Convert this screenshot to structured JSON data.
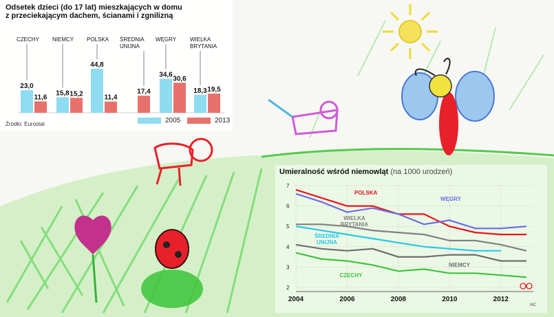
{
  "chart_data": [
    {
      "type": "bar",
      "title": "Odsetek dzieci (do 17 lat) mieszkających w domu",
      "subtitle": "z przeciekającym dachem, ścianami i zgnilizną",
      "source": "Źródło: Eurostat",
      "categories": [
        "CZECHY",
        "NIEMCY",
        "POLSKA",
        "ŚREDNIA UNIJNA",
        "WĘGRY",
        "WIELKA BRYTANIA"
      ],
      "category_lines": [
        [
          "CZECHY"
        ],
        [
          "NIEMCY"
        ],
        [
          "POLSKA"
        ],
        [
          "ŚREDNIA",
          "UNIJNA"
        ],
        [
          "WĘGRY"
        ],
        [
          "WIELKA",
          "BRYTANIA"
        ]
      ],
      "series": [
        {
          "name": "2005",
          "color": "#8fdcf0",
          "values": [
            23.0,
            15.8,
            44.8,
            null,
            34.6,
            18.3
          ],
          "labels": [
            "23,0",
            "15,8",
            "44,8",
            "",
            "34,6",
            "18,3"
          ]
        },
        {
          "name": "2013",
          "color": "#e9716c",
          "values": [
            11.6,
            15.2,
            11.4,
            17.4,
            30.6,
            19.5
          ],
          "labels": [
            "11,6",
            "15,2",
            "11,4",
            "17,4",
            "30,6",
            "19,5"
          ]
        }
      ],
      "ylim": [
        0,
        50
      ],
      "legend_position": "bottom-right"
    },
    {
      "type": "line",
      "title": "Umieralność wśród niemowląt",
      "subtitle": "(na 1000 urodzeń)",
      "x": [
        2004,
        2005,
        2006,
        2007,
        2008,
        2009,
        2010,
        2011,
        2012,
        2013
      ],
      "x_ticks": [
        "2004",
        "2006",
        "2008",
        "2010",
        "2012"
      ],
      "y_ticks": [
        "2",
        "3",
        "4",
        "5",
        "6",
        "7"
      ],
      "ylim": [
        2,
        7
      ],
      "xlim": [
        2004,
        2013
      ],
      "grid": true,
      "series": [
        {
          "name": "POLSKA",
          "label_lines": [
            "POLSKA"
          ],
          "color": "#e8141b",
          "values": [
            6.8,
            6.4,
            6.0,
            6.0,
            5.6,
            5.6,
            5.0,
            4.7,
            4.6,
            4.6
          ]
        },
        {
          "name": "WĘGRY",
          "label_lines": [
            "WĘGRY"
          ],
          "color": "#6a6ee0",
          "values": [
            6.6,
            6.2,
            5.7,
            5.9,
            5.6,
            5.1,
            5.3,
            4.9,
            4.9,
            5.0
          ]
        },
        {
          "name": "WIELKA BRYTANIA",
          "label_lines": [
            "WIELKA",
            "BRYTANIA"
          ],
          "color": "#808080",
          "values": [
            5.1,
            5.1,
            5.0,
            4.8,
            4.7,
            4.6,
            4.3,
            4.3,
            4.1,
            3.8
          ]
        },
        {
          "name": "ŚREDNIA UNIJNA",
          "label_lines": [
            "ŚREDNIA",
            "UNIJNA"
          ],
          "color": "#27c7e6",
          "values": [
            5.0,
            4.8,
            4.6,
            4.4,
            4.2,
            4.0,
            3.9,
            3.8,
            3.8,
            null
          ]
        },
        {
          "name": "NIEMCY",
          "label_lines": [
            "NIEMCY"
          ],
          "color": "#6e6e6e",
          "values": [
            4.1,
            3.9,
            3.8,
            3.9,
            3.5,
            3.5,
            3.6,
            3.6,
            3.3,
            3.3
          ]
        },
        {
          "name": "CZECHY",
          "label_lines": [
            "CZECHY"
          ],
          "color": "#3cc43a",
          "values": [
            3.7,
            3.4,
            3.3,
            3.1,
            2.8,
            2.9,
            2.7,
            2.7,
            2.6,
            2.5
          ]
        }
      ]
    }
  ],
  "credit": "MC"
}
